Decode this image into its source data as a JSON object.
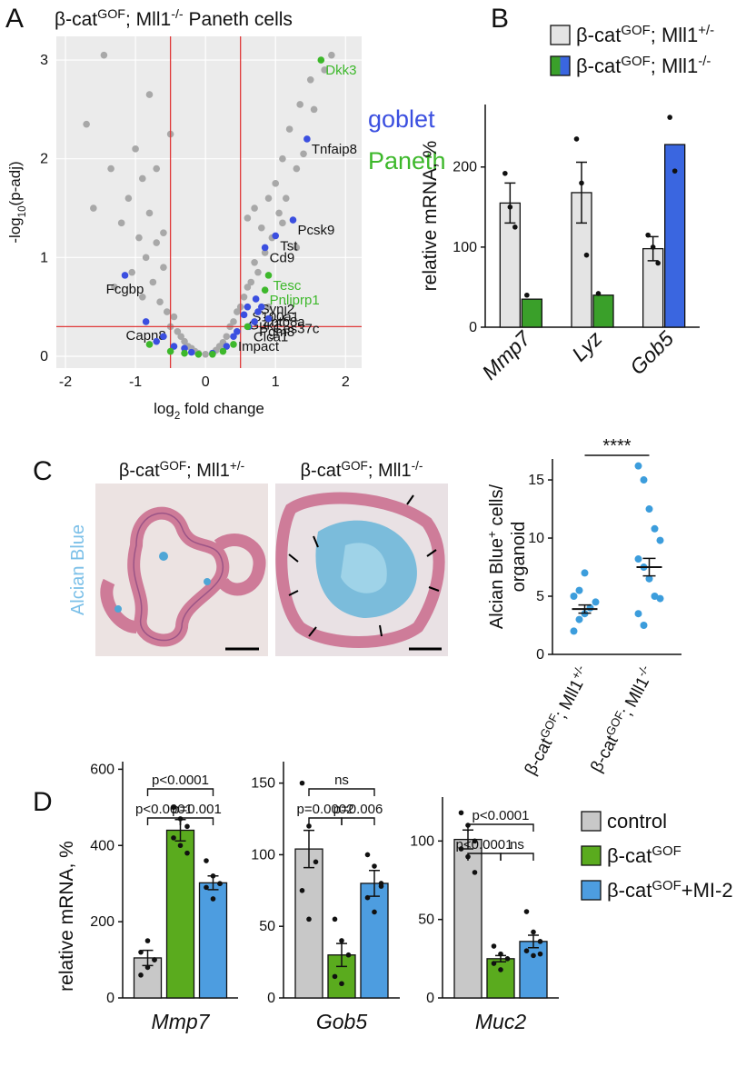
{
  "panel_labels": [
    "A",
    "B",
    "C",
    "D"
  ],
  "images": {
    "headers": [
      [
        "β-cat",
        "GOF",
        "; Mll1",
        "+/-"
      ],
      [
        "β-cat",
        "GOF",
        "; Mll1",
        "-/-"
      ]
    ],
    "stain": "Alcian Blue"
  },
  "chart_data": [
    {
      "type": "scatter",
      "title": [
        "β-cat",
        "GOF",
        "; Mll1",
        "-/-",
        " Paneth cells"
      ],
      "x_label": [
        "log",
        "2",
        " fold change"
      ],
      "y_label": [
        "-log",
        "10",
        "(p-adj)"
      ],
      "xlim": [
        -2.13,
        2.23
      ],
      "ylim": [
        -0.12,
        3.24
      ],
      "xticks": [
        -2,
        -1,
        0,
        1,
        2
      ],
      "yticks": [
        0,
        1,
        2,
        3
      ],
      "grid": true,
      "vlines": [
        -0.5,
        0.5
      ],
      "hlines": [
        0.3
      ],
      "line_color": "#e03a3a",
      "background": {
        "color": "#a8a8a8",
        "x": [
          -1.7,
          -1.6,
          -1.45,
          -1.35,
          -1.2,
          -1.1,
          -1.0,
          -0.95,
          -0.9,
          -0.85,
          -0.8,
          -0.75,
          -0.7,
          -0.65,
          -0.6,
          -0.55,
          -0.5,
          -0.45,
          -0.4,
          -0.35,
          -0.3,
          -0.25,
          -0.2,
          -0.15,
          -0.1,
          0.0,
          0.1,
          0.15,
          0.2,
          0.25,
          0.3,
          0.35,
          0.4,
          0.45,
          0.5,
          0.55,
          0.6,
          0.65,
          0.7,
          0.75,
          0.8,
          0.85,
          0.9,
          0.95,
          1.0,
          1.05,
          1.1,
          1.15,
          1.2,
          1.3,
          1.35,
          1.4,
          1.5,
          1.55,
          1.7,
          1.8,
          -1.3,
          -1.05,
          -0.9,
          -0.8,
          -0.7,
          -0.6,
          0.7,
          0.9,
          1.1,
          1.3,
          -0.5,
          0.6
        ],
        "y": [
          2.35,
          1.5,
          3.05,
          1.9,
          1.35,
          1.6,
          2.1,
          1.2,
          0.6,
          1.0,
          1.45,
          0.75,
          1.15,
          0.55,
          0.9,
          0.45,
          0.3,
          0.4,
          0.25,
          0.2,
          0.15,
          0.1,
          0.08,
          0.05,
          0.03,
          0.02,
          0.03,
          0.06,
          0.1,
          0.14,
          0.2,
          0.3,
          0.35,
          0.45,
          0.5,
          0.6,
          0.7,
          0.75,
          0.95,
          0.85,
          1.3,
          1.05,
          1.6,
          1.2,
          1.75,
          1.45,
          2.0,
          1.6,
          2.3,
          1.9,
          2.55,
          2.05,
          2.8,
          2.5,
          2.9,
          3.05,
          0.7,
          0.85,
          1.8,
          2.65,
          1.9,
          1.25,
          1.5,
          0.5,
          1.35,
          1.1,
          2.25,
          1.4
        ]
      },
      "series": [
        {
          "name": "goblet",
          "color": "#3b4fe0",
          "x": [
            1.45,
            1.25,
            1.0,
            0.85,
            -1.15,
            0.72,
            0.6,
            0.75,
            0.55,
            0.7,
            0.9,
            0.62,
            0.4,
            -0.85,
            -0.6,
            -0.45,
            -0.3,
            -0.2,
            0.1,
            0.3,
            0.45,
            0.8,
            -0.7
          ],
          "y": [
            2.2,
            1.38,
            1.22,
            1.1,
            0.82,
            0.58,
            0.5,
            0.45,
            0.42,
            0.35,
            0.38,
            0.3,
            0.2,
            0.35,
            0.2,
            0.1,
            0.08,
            0.04,
            0.03,
            0.1,
            0.25,
            0.5,
            0.15
          ],
          "labels": [
            "Tnfaip8",
            "Pcsk9",
            "Tst",
            "Cd9",
            "Fcgbp",
            "Synj2",
            "S100a1",
            "Zbtb8a",
            "Guk1",
            "Pgm8",
            "Ces37c",
            "Clca1",
            "Impact",
            "Capn8",
            null,
            null,
            null,
            null,
            null,
            null,
            null,
            null,
            null
          ]
        },
        {
          "name": "Paneth",
          "color": "#3db82b",
          "x": [
            1.65,
            0.9,
            0.85,
            -0.8,
            -0.5,
            -0.3,
            -0.1,
            0.1,
            0.25,
            0.4,
            0.6
          ],
          "y": [
            3.0,
            0.82,
            0.67,
            0.12,
            0.05,
            0.03,
            0.02,
            0.02,
            0.05,
            0.12,
            0.3
          ],
          "labels": [
            "Dkk3",
            "Tesc",
            "Pnliprp1",
            null,
            null,
            null,
            null,
            null,
            null,
            null,
            null
          ]
        }
      ]
    },
    {
      "type": "bar",
      "y_label": "relative mRNA, %",
      "ylim": [
        0,
        278
      ],
      "yticks": [
        0,
        100,
        200
      ],
      "categories": [
        "Mmp7",
        "Lyz",
        "Gob5"
      ],
      "series": [
        {
          "name": [
            "β-cat",
            "GOF",
            "; Mll1",
            "+/-"
          ],
          "color": "#e4e4e4",
          "values": [
            155,
            168,
            98
          ],
          "errors": [
            25,
            38,
            15
          ],
          "points": [
            [
              192,
              150,
              125
            ],
            [
              235,
              180,
              90
            ],
            [
              115,
              100,
              80
            ]
          ]
        },
        {
          "name": [
            "β-cat",
            "GOF",
            "; Mll1",
            "-/-"
          ],
          "colors": [
            "#3aa02a",
            "#3aa02a",
            "#3a66e0"
          ],
          "values": [
            35,
            40,
            228
          ],
          "points": [
            [
              40
            ],
            [
              42
            ],
            [
              262,
              195
            ]
          ]
        }
      ]
    },
    {
      "type": "dot",
      "y_label": [
        [
          "Alcian Blue",
          "+",
          " cells/"
        ],
        [
          "organoid"
        ]
      ],
      "ylim": [
        0,
        16.8
      ],
      "yticks": [
        0,
        5,
        10,
        15
      ],
      "color": "#3c9ddc",
      "annotation": "****",
      "categories": [
        [
          "β-cat",
          "GOF",
          "; Mll1",
          "+/-"
        ],
        [
          "β-cat",
          "GOF",
          "; Mll1",
          "-/-"
        ]
      ],
      "values": [
        3.9,
        7.5
      ],
      "errors": [
        0.35,
        0.75
      ],
      "points": [
        [
          2,
          3,
          3.5,
          4,
          4.5,
          5,
          5.5,
          7
        ],
        [
          16.2,
          15,
          12.5,
          10.8,
          9.8,
          8.2,
          7.5,
          6.5,
          5,
          4.8,
          3.5,
          2.5
        ]
      ]
    },
    {
      "type": "bar",
      "y_label": "relative mRNA, %",
      "ylim": [
        0,
        620
      ],
      "yticks": [
        0,
        200,
        400,
        600
      ],
      "categories": [
        "Mmp7"
      ],
      "series": [
        {
          "color": "#c8c8c8",
          "values": [
            105
          ],
          "errors": [
            20
          ],
          "points": [
            [
              60,
              80,
              100,
              120,
              150,
              100
            ]
          ]
        },
        {
          "color": "#5aab1e",
          "values": [
            440
          ],
          "errors": [
            28
          ],
          "points": [
            [
              500,
              470,
              450,
              420,
              400,
              380
            ]
          ]
        },
        {
          "color": "#4d9de0",
          "values": [
            302
          ],
          "errors": [
            18
          ],
          "points": [
            [
              360,
              320,
              300,
              290,
              260,
              300
            ]
          ]
        }
      ],
      "comparisons": [
        {
          "pair": [
            0,
            1
          ],
          "label": "p<0.0001"
        },
        {
          "pair": [
            1,
            2
          ],
          "label": "p=0.001"
        },
        {
          "pair": [
            0,
            2
          ],
          "label": "p<0.0001"
        }
      ]
    },
    {
      "type": "bar",
      "ylim": [
        0,
        165
      ],
      "yticks": [
        0,
        50,
        100,
        150
      ],
      "categories": [
        "Gob5"
      ],
      "series": [
        {
          "color": "#c8c8c8",
          "values": [
            104
          ],
          "errors": [
            13
          ],
          "points": [
            [
              150,
              120,
              95,
              75,
              55
            ]
          ]
        },
        {
          "color": "#5aab1e",
          "values": [
            30
          ],
          "errors": [
            8
          ],
          "points": [
            [
              55,
              40,
              30,
              15,
              10
            ]
          ]
        },
        {
          "color": "#4d9de0",
          "values": [
            80
          ],
          "errors": [
            9
          ],
          "points": [
            [
              100,
              92,
              80,
              70,
              60,
              78
            ]
          ]
        }
      ],
      "comparisons": [
        {
          "pair": [
            0,
            1
          ],
          "label": "p=0.0002"
        },
        {
          "pair": [
            1,
            2
          ],
          "label": "p=0.006"
        },
        {
          "pair": [
            0,
            2
          ],
          "label": "ns"
        }
      ]
    },
    {
      "type": "bar",
      "ylim": [
        0,
        128
      ],
      "yticks": [
        0,
        50,
        100
      ],
      "categories": [
        "Muc2"
      ],
      "series": [
        {
          "name": "control",
          "color": "#c8c8c8",
          "values": [
            101
          ],
          "errors": [
            6
          ],
          "points": [
            [
              118,
              110,
              100,
              95,
              90,
              80
            ]
          ]
        },
        {
          "name": [
            "β-cat",
            "GOF"
          ],
          "color": "#5aab1e",
          "values": [
            25
          ],
          "errors": [
            2
          ],
          "points": [
            [
              33,
              28,
              25,
              22,
              18
            ]
          ]
        },
        {
          "name": [
            "β-cat",
            "GOF",
            "+MI-2"
          ],
          "color": "#4d9de0",
          "values": [
            36
          ],
          "errors": [
            4
          ],
          "points": [
            [
              55,
              42,
              36,
              30,
              27,
              28
            ]
          ]
        }
      ],
      "comparisons": [
        {
          "pair": [
            0,
            1
          ],
          "label": "p<0.0001"
        },
        {
          "pair": [
            1,
            2
          ],
          "label": "ns"
        },
        {
          "pair": [
            0,
            2
          ],
          "label": "p<0.0001"
        }
      ]
    }
  ]
}
